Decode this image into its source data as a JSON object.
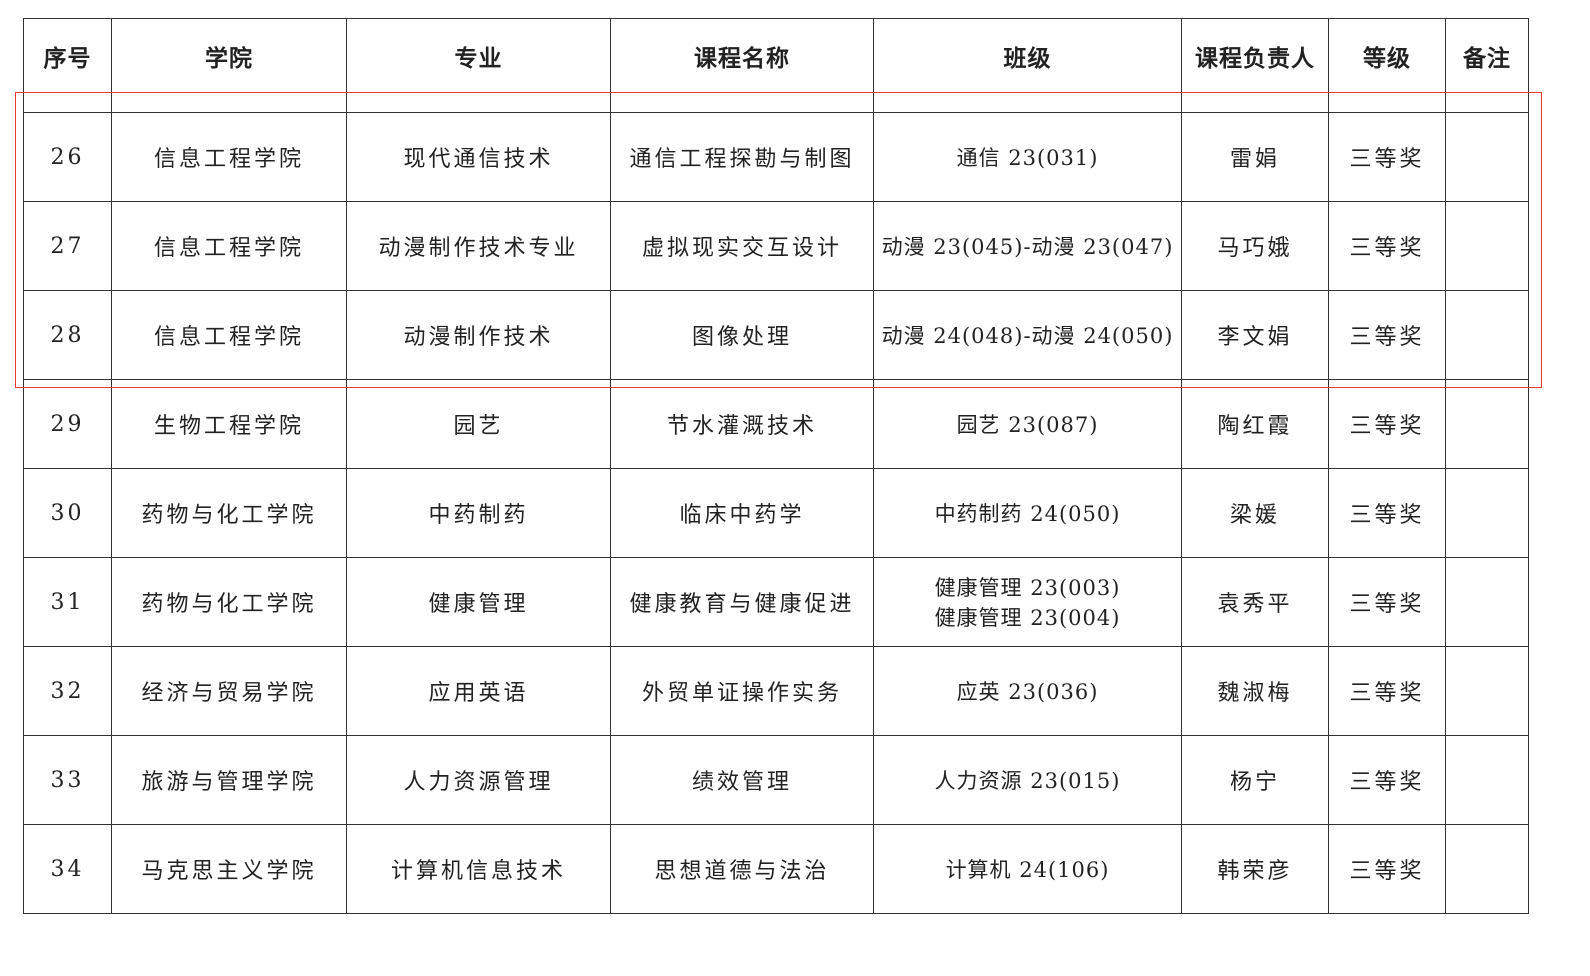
{
  "table": {
    "headers": [
      "序号",
      "学院",
      "专业",
      "课程名称",
      "班级",
      "课程负责人",
      "等级",
      "备注"
    ],
    "rows": [
      {
        "no": "26",
        "college": "信息工程学院",
        "major": "现代通信技术",
        "course": "通信工程探勘与制图",
        "class_lines": [
          "通信 23(031)"
        ],
        "teacher": "雷娟",
        "level": "三等奖",
        "note": ""
      },
      {
        "no": "27",
        "college": "信息工程学院",
        "major": "动漫制作技术专业",
        "course": "虚拟现实交互设计",
        "class_lines": [
          "动漫 23(045)-动漫 23(047)"
        ],
        "teacher": "马巧娥",
        "level": "三等奖",
        "note": ""
      },
      {
        "no": "28",
        "college": "信息工程学院",
        "major": "动漫制作技术",
        "course": "图像处理",
        "class_lines": [
          "动漫 24(048)-动漫 24(050)"
        ],
        "teacher": "李文娟",
        "level": "三等奖",
        "note": ""
      },
      {
        "no": "29",
        "college": "生物工程学院",
        "major": "园艺",
        "course": "节水灌溉技术",
        "class_lines": [
          "园艺 23(087)"
        ],
        "teacher": "陶红霞",
        "level": "三等奖",
        "note": ""
      },
      {
        "no": "30",
        "college": "药物与化工学院",
        "major": "中药制药",
        "course": "临床中药学",
        "class_lines": [
          "中药制药 24(050)"
        ],
        "teacher": "梁媛",
        "level": "三等奖",
        "note": ""
      },
      {
        "no": "31",
        "college": "药物与化工学院",
        "major": "健康管理",
        "course": "健康教育与健康促进",
        "class_lines": [
          "健康管理 23(003)",
          "健康管理 23(004)"
        ],
        "teacher": "袁秀平",
        "level": "三等奖",
        "note": ""
      },
      {
        "no": "32",
        "college": "经济与贸易学院",
        "major": "应用英语",
        "course": "外贸单证操作实务",
        "class_lines": [
          "应英 23(036)"
        ],
        "teacher": "魏淑梅",
        "level": "三等奖",
        "note": ""
      },
      {
        "no": "33",
        "college": "旅游与管理学院",
        "major": "人力资源管理",
        "course": "绩效管理",
        "class_lines": [
          "人力资源 23(015)"
        ],
        "teacher": "杨宁",
        "level": "三等奖",
        "note": ""
      },
      {
        "no": "34",
        "college": "马克思主义学院",
        "major": "计算机信息技术",
        "course": "思想道德与法治",
        "class_lines": [
          "计算机 24(106)"
        ],
        "teacher": "韩荣彦",
        "level": "三等奖",
        "note": ""
      }
    ]
  },
  "highlight_color": "#e53935"
}
